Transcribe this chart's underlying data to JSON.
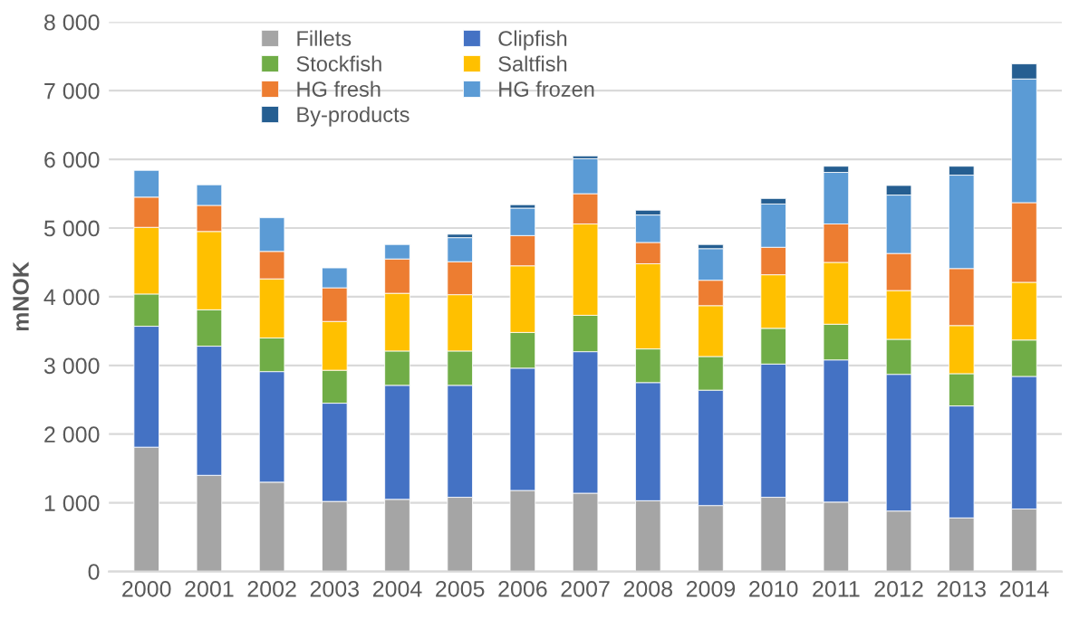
{
  "chart_data": {
    "type": "bar",
    "stacked": true,
    "ylabel": "mNOK",
    "categories": [
      "2000",
      "2001",
      "2002",
      "2003",
      "2004",
      "2005",
      "2006",
      "2007",
      "2008",
      "2009",
      "2010",
      "2011",
      "2012",
      "2013",
      "2014"
    ],
    "series": [
      {
        "name": "Fillets",
        "color": "#a5a5a5",
        "values": [
          1810,
          1400,
          1300,
          1020,
          1050,
          1080,
          1180,
          1140,
          1030,
          960,
          1080,
          1010,
          880,
          780,
          910
        ]
      },
      {
        "name": "Clipfish",
        "color": "#4472c4",
        "values": [
          1760,
          1880,
          1610,
          1430,
          1660,
          1630,
          1780,
          2060,
          1720,
          1680,
          1940,
          2070,
          1990,
          1630,
          1930
        ]
      },
      {
        "name": "Stockfish",
        "color": "#70ad47",
        "values": [
          470,
          530,
          490,
          480,
          500,
          500,
          520,
          530,
          490,
          490,
          520,
          520,
          510,
          470,
          530
        ]
      },
      {
        "name": "Saltfish",
        "color": "#ffc000",
        "values": [
          970,
          1140,
          860,
          710,
          840,
          820,
          970,
          1330,
          1240,
          740,
          780,
          900,
          710,
          700,
          840
        ]
      },
      {
        "name": "HG fresh",
        "color": "#ed7d31",
        "values": [
          440,
          380,
          400,
          490,
          500,
          480,
          440,
          440,
          310,
          370,
          400,
          560,
          540,
          830,
          1160
        ]
      },
      {
        "name": "HG frozen",
        "color": "#5b9bd5",
        "values": [
          390,
          300,
          490,
          290,
          210,
          350,
          400,
          510,
          400,
          460,
          630,
          750,
          850,
          1360,
          1800
        ]
      },
      {
        "name": "By-products",
        "color": "#255e91",
        "values": [
          null,
          null,
          null,
          null,
          null,
          50,
          50,
          40,
          70,
          60,
          80,
          90,
          140,
          130,
          220
        ]
      }
    ],
    "ylim": [
      0,
      8000
    ],
    "yticks": [
      0,
      {
        "value": 1000,
        "label": "1 000"
      },
      {
        "value": 2000,
        "label": "2 000"
      },
      {
        "value": 3000,
        "label": "3 000"
      },
      {
        "value": 4000,
        "label": "4 000"
      },
      {
        "value": 5000,
        "label": "5 000"
      },
      {
        "value": 6000,
        "label": "6 000"
      },
      {
        "value": 7000,
        "label": "7 000"
      },
      {
        "value": 8000,
        "label": "8 000"
      }
    ],
    "grid": "y",
    "legend": "top left"
  }
}
